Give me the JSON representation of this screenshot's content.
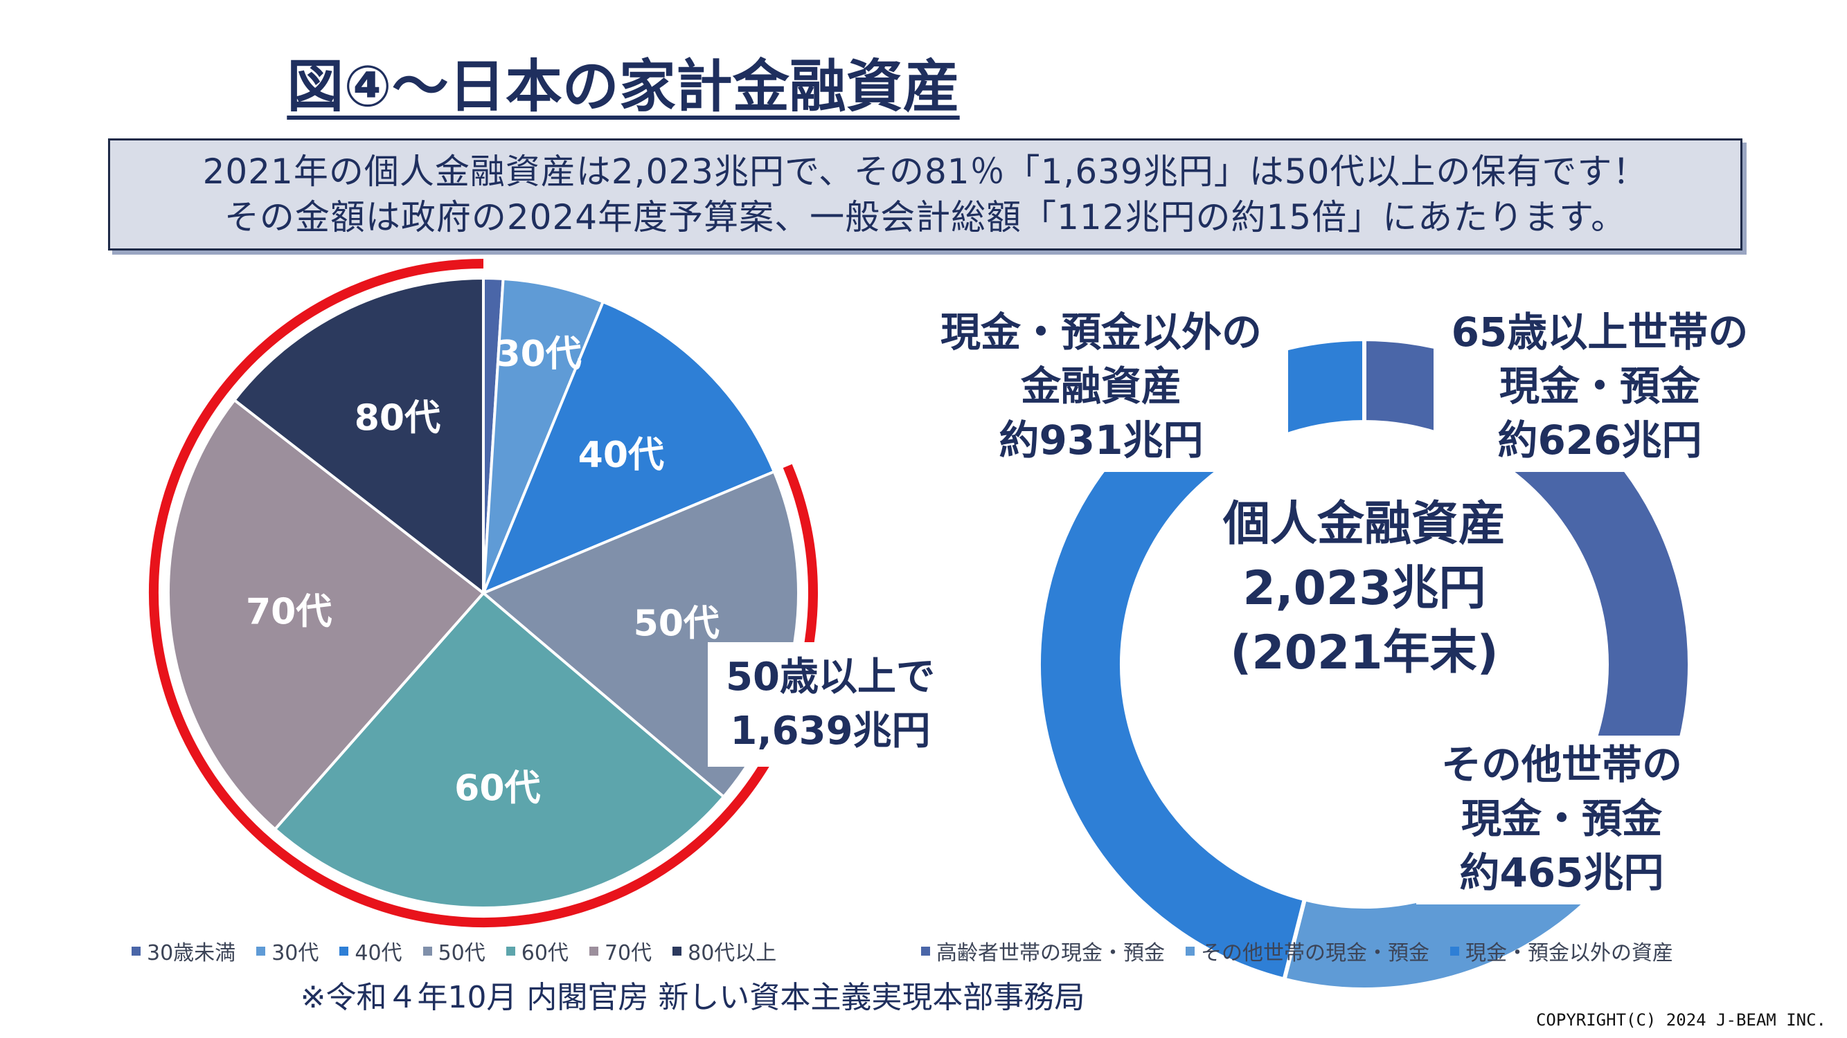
{
  "title": "図④～日本の家計金融資産",
  "note": {
    "line1": "2021年の個人金融資産は2,023兆円で、その81％「1,639兆円」は50代以上の保有です！",
    "line2": "その金額は政府の2024年度予算案、一般会計総額「112兆円の約15倍」にあたります。"
  },
  "chart_data": [
    {
      "type": "pie",
      "categories": [
        "30歳未満",
        "30代",
        "40代",
        "50代",
        "60代",
        "70代",
        "80代以上"
      ],
      "values": [
        1.0,
        5.2,
        12.5,
        17.5,
        25.3,
        24.0,
        14.5
      ],
      "slice_labels": [
        "",
        "30代",
        "40代",
        "50代",
        "60代",
        "70代",
        "80代"
      ],
      "colors": [
        "#4a66a8",
        "#5f9bd6",
        "#2e7fd6",
        "#8090aa",
        "#5da5ac",
        "#9c8f9c",
        "#2c3a5e"
      ],
      "highlight_color": "#e8131b",
      "annotation": [
        "50歳以上で",
        "1,639兆円"
      ]
    },
    {
      "type": "pie",
      "categories": [
        "高齢者世帯の現金・預金",
        "その他世帯の現金・預金",
        "現金・預金以外の資産"
      ],
      "values": [
        626,
        465,
        931
      ],
      "colors": [
        "#4a66a8",
        "#5f9bd6",
        "#2e7fd6"
      ],
      "center_label": [
        "個人金融資産",
        "2,023兆円",
        "(2021年末)"
      ],
      "slice_labels": [
        [
          "65歳以上世帯の",
          "現金・預金",
          "約626兆円"
        ],
        [
          "その他世帯の",
          "現金・預金",
          "約465兆円"
        ],
        [
          "現金・預金以外の",
          "金融資産",
          "約931兆円"
        ]
      ]
    }
  ],
  "source": "※令和４年10月 内閣官房 新しい資本主義実現本部事務局",
  "copyright": "COPYRIGHT(C) 2024  J-BEAM  INC."
}
